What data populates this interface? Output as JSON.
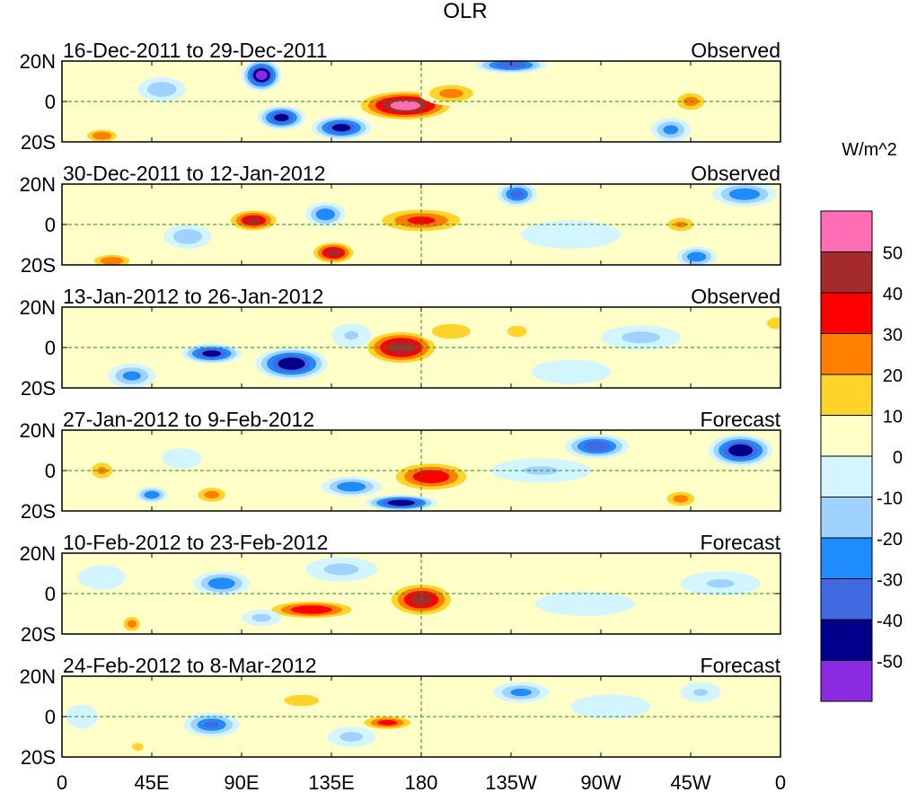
{
  "chart_data": {
    "type": "heatmap",
    "title": "OLR",
    "units_label": "W/m^2",
    "x_tick_labels": [
      "0",
      "45E",
      "90E",
      "135E",
      "180",
      "135W",
      "90W",
      "45W",
      "0"
    ],
    "x_tick_lons": [
      0,
      45,
      90,
      135,
      180,
      225,
      270,
      315,
      360
    ],
    "y_tick_labels": [
      "20N",
      "0",
      "20S"
    ],
    "y_tick_lats": [
      20,
      0,
      -20
    ],
    "xlim": [
      0,
      360
    ],
    "ylim": [
      -20,
      20
    ],
    "reference_lines": {
      "equator_lat": 0,
      "dateline_lon": 180
    },
    "colorbar": {
      "levels": [
        50,
        40,
        30,
        20,
        10,
        0,
        -10,
        -20,
        -30,
        -40,
        -50
      ],
      "level_labels": [
        "50",
        "40",
        "30",
        "20",
        "10",
        "0",
        "-10",
        "-20",
        "-30",
        "-40",
        "-50"
      ],
      "colors": [
        "#ff6eb4",
        "#a52a2a",
        "#ff0000",
        "#ff7f00",
        "#ffd42a",
        "#ffffc8",
        "#d2f5ff",
        "#a0d2ff",
        "#1e8cff",
        "#4169e1",
        "#00008b",
        "#8a2be2"
      ]
    },
    "panels": [
      {
        "period": "16-Dec-2011 to 29-Dec-2011",
        "kind": "Observed",
        "anomalies": [
          {
            "lon": 172,
            "lat": -2,
            "rlon": 26,
            "rlat": 8,
            "v": 55
          },
          {
            "lon": 195,
            "lat": 4,
            "rlon": 16,
            "rlat": 6,
            "v": 25
          },
          {
            "lon": 315,
            "lat": 0,
            "rlon": 10,
            "rlat": 6,
            "v": 25
          },
          {
            "lon": 20,
            "lat": -17,
            "rlon": 10,
            "rlat": 4,
            "v": 30
          },
          {
            "lon": 100,
            "lat": 13,
            "rlon": 10,
            "rlat": 8,
            "v": -55
          },
          {
            "lon": 110,
            "lat": -8,
            "rlon": 12,
            "rlat": 6,
            "v": -45
          },
          {
            "lon": 140,
            "lat": -13,
            "rlon": 15,
            "rlat": 6,
            "v": -45
          },
          {
            "lon": 225,
            "lat": 18,
            "rlon": 18,
            "rlat": 4,
            "v": -40
          },
          {
            "lon": 305,
            "lat": -14,
            "rlon": 10,
            "rlat": 6,
            "v": -25
          },
          {
            "lon": 50,
            "lat": 6,
            "rlon": 12,
            "rlat": 6,
            "v": -20
          },
          {
            "lon": 255,
            "lat": -8,
            "rlon": 30,
            "rlat": 8,
            "v": 7
          }
        ]
      },
      {
        "period": "30-Dec-2011 to 12-Jan-2012",
        "kind": "Observed",
        "anomalies": [
          {
            "lon": 96,
            "lat": 2,
            "rlon": 14,
            "rlat": 6,
            "v": 42
          },
          {
            "lon": 136,
            "lat": -14,
            "rlon": 12,
            "rlat": 6,
            "v": 45
          },
          {
            "lon": 180,
            "lat": 2,
            "rlon": 26,
            "rlat": 7,
            "v": 32
          },
          {
            "lon": 25,
            "lat": -18,
            "rlon": 12,
            "rlat": 4,
            "v": 30
          },
          {
            "lon": 310,
            "lat": 0,
            "rlon": 10,
            "rlat": 5,
            "v": 22
          },
          {
            "lon": 228,
            "lat": 15,
            "rlon": 10,
            "rlat": 6,
            "v": -35
          },
          {
            "lon": 342,
            "lat": 15,
            "rlon": 16,
            "rlat": 6,
            "v": -30
          },
          {
            "lon": 132,
            "lat": 5,
            "rlon": 10,
            "rlat": 6,
            "v": -30
          },
          {
            "lon": 63,
            "lat": -6,
            "rlon": 12,
            "rlat": 6,
            "v": -20
          },
          {
            "lon": 318,
            "lat": -16,
            "rlon": 10,
            "rlat": 5,
            "v": -30
          },
          {
            "lon": 255,
            "lat": -5,
            "rlon": 25,
            "rlat": 7,
            "v": -10
          }
        ]
      },
      {
        "period": "13-Jan-2012 to 26-Jan-2012",
        "kind": "Observed",
        "anomalies": [
          {
            "lon": 170,
            "lat": 0,
            "rlon": 20,
            "rlat": 9,
            "v": 50
          },
          {
            "lon": 195,
            "lat": 8,
            "rlon": 16,
            "rlat": 6,
            "v": 20
          },
          {
            "lon": 228,
            "lat": 8,
            "rlon": 14,
            "rlat": 8,
            "v": 12
          },
          {
            "lon": 358,
            "lat": 12,
            "rlon": 10,
            "rlat": 6,
            "v": 15
          },
          {
            "lon": 75,
            "lat": -3,
            "rlon": 15,
            "rlat": 5,
            "v": -45
          },
          {
            "lon": 115,
            "lat": -8,
            "rlon": 18,
            "rlat": 8,
            "v": -50
          },
          {
            "lon": 35,
            "lat": -14,
            "rlon": 12,
            "rlat": 6,
            "v": -25
          },
          {
            "lon": 290,
            "lat": 5,
            "rlon": 20,
            "rlat": 6,
            "v": -15
          },
          {
            "lon": 255,
            "lat": -12,
            "rlon": 20,
            "rlat": 6,
            "v": -10
          },
          {
            "lon": 145,
            "lat": 6,
            "rlon": 10,
            "rlat": 6,
            "v": -12
          }
        ]
      },
      {
        "period": "27-Jan-2012 to 9-Feb-2012",
        "kind": "Forecast",
        "anomalies": [
          {
            "lon": 185,
            "lat": -3,
            "rlon": 22,
            "rlat": 8,
            "v": 40
          },
          {
            "lon": 20,
            "lat": 0,
            "rlon": 8,
            "rlat": 6,
            "v": 22
          },
          {
            "lon": 75,
            "lat": -12,
            "rlon": 10,
            "rlat": 5,
            "v": 25
          },
          {
            "lon": 310,
            "lat": -14,
            "rlon": 10,
            "rlat": 5,
            "v": 25
          },
          {
            "lon": 340,
            "lat": 10,
            "rlon": 16,
            "rlat": 8,
            "v": -50
          },
          {
            "lon": 268,
            "lat": 12,
            "rlon": 16,
            "rlat": 6,
            "v": -40
          },
          {
            "lon": 170,
            "lat": -16,
            "rlon": 18,
            "rlat": 4,
            "v": -50
          },
          {
            "lon": 145,
            "lat": -8,
            "rlon": 15,
            "rlat": 5,
            "v": -30
          },
          {
            "lon": 45,
            "lat": -12,
            "rlon": 8,
            "rlat": 4,
            "v": -30
          },
          {
            "lon": 240,
            "lat": 0,
            "rlon": 25,
            "rlat": 6,
            "v": -12
          },
          {
            "lon": 60,
            "lat": 6,
            "rlon": 10,
            "rlat": 5,
            "v": -10
          }
        ]
      },
      {
        "period": "10-Feb-2012 to 23-Feb-2012",
        "kind": "Forecast",
        "anomalies": [
          {
            "lon": 180,
            "lat": -3,
            "rlon": 18,
            "rlat": 9,
            "v": 45
          },
          {
            "lon": 125,
            "lat": -8,
            "rlon": 25,
            "rlat": 5,
            "v": 40
          },
          {
            "lon": 35,
            "lat": -15,
            "rlon": 6,
            "rlat": 5,
            "v": 25
          },
          {
            "lon": 220,
            "lat": 4,
            "rlon": 20,
            "rlat": 6,
            "v": 7
          },
          {
            "lon": 80,
            "lat": 5,
            "rlon": 14,
            "rlat": 6,
            "v": -30
          },
          {
            "lon": 100,
            "lat": -12,
            "rlon": 10,
            "rlat": 4,
            "v": -15
          },
          {
            "lon": 140,
            "lat": 12,
            "rlon": 18,
            "rlat": 6,
            "v": -15
          },
          {
            "lon": 330,
            "lat": 5,
            "rlon": 20,
            "rlat": 6,
            "v": -12
          },
          {
            "lon": 262,
            "lat": -5,
            "rlon": 25,
            "rlat": 6,
            "v": -8
          },
          {
            "lon": 20,
            "lat": 8,
            "rlon": 12,
            "rlat": 6,
            "v": -10
          }
        ]
      },
      {
        "period": "24-Feb-2012 to 8-Mar-2012",
        "kind": "Forecast",
        "anomalies": [
          {
            "lon": 163,
            "lat": -3,
            "rlon": 15,
            "rlat": 4,
            "v": 35
          },
          {
            "lon": 120,
            "lat": 8,
            "rlon": 25,
            "rlat": 8,
            "v": 12
          },
          {
            "lon": 38,
            "lat": -15,
            "rlon": 6,
            "rlat": 4,
            "v": 15
          },
          {
            "lon": 75,
            "lat": -4,
            "rlon": 14,
            "rlat": 6,
            "v": -32
          },
          {
            "lon": 230,
            "lat": 12,
            "rlon": 14,
            "rlat": 5,
            "v": -25
          },
          {
            "lon": 145,
            "lat": -10,
            "rlon": 12,
            "rlat": 5,
            "v": -15
          },
          {
            "lon": 275,
            "lat": 5,
            "rlon": 20,
            "rlat": 6,
            "v": -10
          },
          {
            "lon": 320,
            "lat": 12,
            "rlon": 10,
            "rlat": 5,
            "v": -12
          },
          {
            "lon": 10,
            "lat": 0,
            "rlon": 8,
            "rlat": 6,
            "v": -8
          }
        ]
      }
    ]
  }
}
